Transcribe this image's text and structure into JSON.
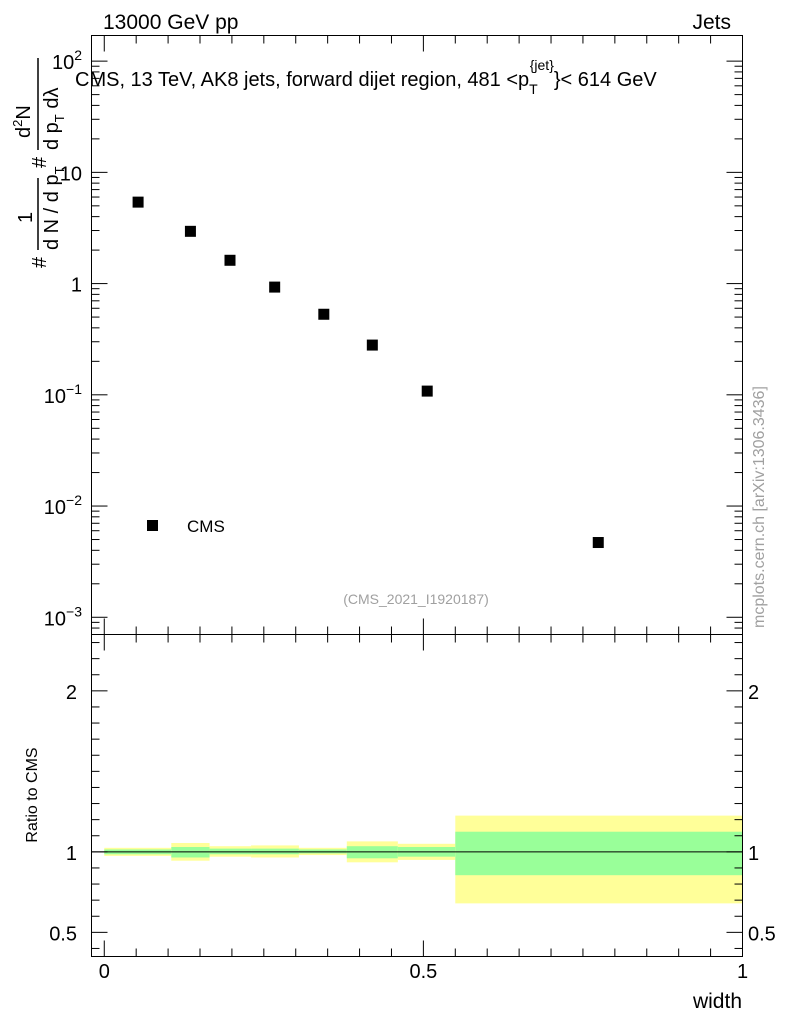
{
  "header": {
    "left": "13000 GeV pp",
    "right": "Jets"
  },
  "watermark": "mcplots.cern.ch [arXiv:1306.3436]",
  "analysis_id": "(CMS_2021_I1920187)",
  "colors": {
    "marker": "#000000",
    "band_inner": "#99ff99",
    "band_outer": "#ffff99",
    "axis": "#000000"
  },
  "chart_data": [
    {
      "type": "scatter",
      "panel": "main",
      "title_parts": {
        "prefix": "CMS, 13 TeV, AK8 jets, forward dijet region, 481 <",
        "var": "p",
        "sub": "T",
        "sup": "{jet}",
        "suffix": "}< 614 GeV"
      },
      "ylabel_parts": {
        "first": "1",
        "mid": "d N / d p",
        "sub": "T",
        "second": "d",
        "second_sup": "2",
        "second_rest": "N",
        "denom": "d p",
        "denom_sub": "T",
        "denom_rest": " dλ",
        "hash": "#"
      },
      "yscale": "log",
      "ylim": [
        0.0007,
        170
      ],
      "xlim": [
        -0.02,
        1.0
      ],
      "ytick_labels": [
        {
          "base": "10",
          "exp": "2",
          "value": 100
        },
        {
          "base": "10",
          "exp": "",
          "value": 10
        },
        {
          "base": "1",
          "exp": "",
          "value": 1
        },
        {
          "base": "10",
          "exp": "−1",
          "value": 0.1
        },
        {
          "base": "10",
          "exp": "−2",
          "value": 0.01
        },
        {
          "base": "10",
          "exp": "−3",
          "value": 0.001
        }
      ],
      "legend": {
        "label": "CMS",
        "position": "bottom-left"
      },
      "series": [
        {
          "name": "CMS",
          "x": [
            0.053,
            0.135,
            0.197,
            0.267,
            0.344,
            0.42,
            0.506,
            0.774
          ],
          "y": [
            5.4,
            2.95,
            1.62,
            0.93,
            0.53,
            0.28,
            0.108,
            0.0047
          ]
        }
      ]
    },
    {
      "type": "area",
      "panel": "ratio",
      "ylabel": "Ratio to CMS",
      "ylim": [
        0.35,
        2.35
      ],
      "xlim": [
        -0.02,
        1.0
      ],
      "xlabel": "width",
      "xtick_labels": [
        {
          "label": "0",
          "value": 0
        },
        {
          "label": "0.5",
          "value": 0.5
        },
        {
          "label": "1",
          "value": 1
        }
      ],
      "ytick_labels": [
        {
          "label": "2",
          "value": 2
        },
        {
          "label": "1",
          "value": 1
        },
        {
          "label": "0.5",
          "value": 0.5
        }
      ],
      "reference_line": 1,
      "bins": [
        {
          "xlo": 0.0,
          "xhi": 0.105,
          "inner": [
            0.985,
            1.015
          ],
          "outer": [
            0.975,
            1.025
          ]
        },
        {
          "xlo": 0.105,
          "xhi": 0.165,
          "inner": [
            0.965,
            1.03
          ],
          "outer": [
            0.945,
            1.055
          ]
        },
        {
          "xlo": 0.165,
          "xhi": 0.23,
          "inner": [
            0.985,
            1.02
          ],
          "outer": [
            0.97,
            1.035
          ]
        },
        {
          "xlo": 0.23,
          "xhi": 0.305,
          "inner": [
            0.985,
            1.02
          ],
          "outer": [
            0.965,
            1.04
          ]
        },
        {
          "xlo": 0.305,
          "xhi": 0.38,
          "inner": [
            0.99,
            1.015
          ],
          "outer": [
            0.98,
            1.025
          ]
        },
        {
          "xlo": 0.38,
          "xhi": 0.46,
          "inner": [
            0.96,
            1.035
          ],
          "outer": [
            0.935,
            1.065
          ]
        },
        {
          "xlo": 0.46,
          "xhi": 0.55,
          "inner": [
            0.97,
            1.03
          ],
          "outer": [
            0.95,
            1.05
          ]
        },
        {
          "xlo": 0.55,
          "xhi": 1.0,
          "inner": [
            0.855,
            1.125
          ],
          "outer": [
            0.68,
            1.225
          ]
        }
      ]
    }
  ]
}
